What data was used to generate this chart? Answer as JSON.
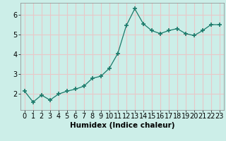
{
  "x": [
    0,
    1,
    2,
    3,
    4,
    5,
    6,
    7,
    8,
    9,
    10,
    11,
    12,
    13,
    14,
    15,
    16,
    17,
    18,
    19,
    20,
    21,
    22,
    23
  ],
  "y": [
    2.15,
    1.6,
    1.95,
    1.7,
    2.0,
    2.15,
    2.25,
    2.4,
    2.8,
    2.9,
    3.3,
    4.05,
    5.45,
    6.3,
    5.55,
    5.2,
    5.05,
    5.2,
    5.3,
    5.05,
    4.95,
    5.2,
    5.5,
    5.5
  ],
  "line_color": "#1a7a6a",
  "marker": "+",
  "marker_size": 4,
  "bg_color": "#cceee8",
  "grid_color": "#e8c8c8",
  "xlabel": "Humidex (Indice chaleur)",
  "xlim": [
    -0.5,
    23.5
  ],
  "ylim": [
    1.2,
    6.6
  ],
  "yticks": [
    2,
    3,
    4,
    5,
    6
  ],
  "xtick_labels": [
    "0",
    "1",
    "2",
    "3",
    "4",
    "5",
    "6",
    "7",
    "8",
    "9",
    "10",
    "11",
    "12",
    "13",
    "14",
    "15",
    "16",
    "17",
    "18",
    "19",
    "20",
    "21",
    "22",
    "23"
  ],
  "xlabel_fontsize": 7.5,
  "tick_fontsize": 7
}
